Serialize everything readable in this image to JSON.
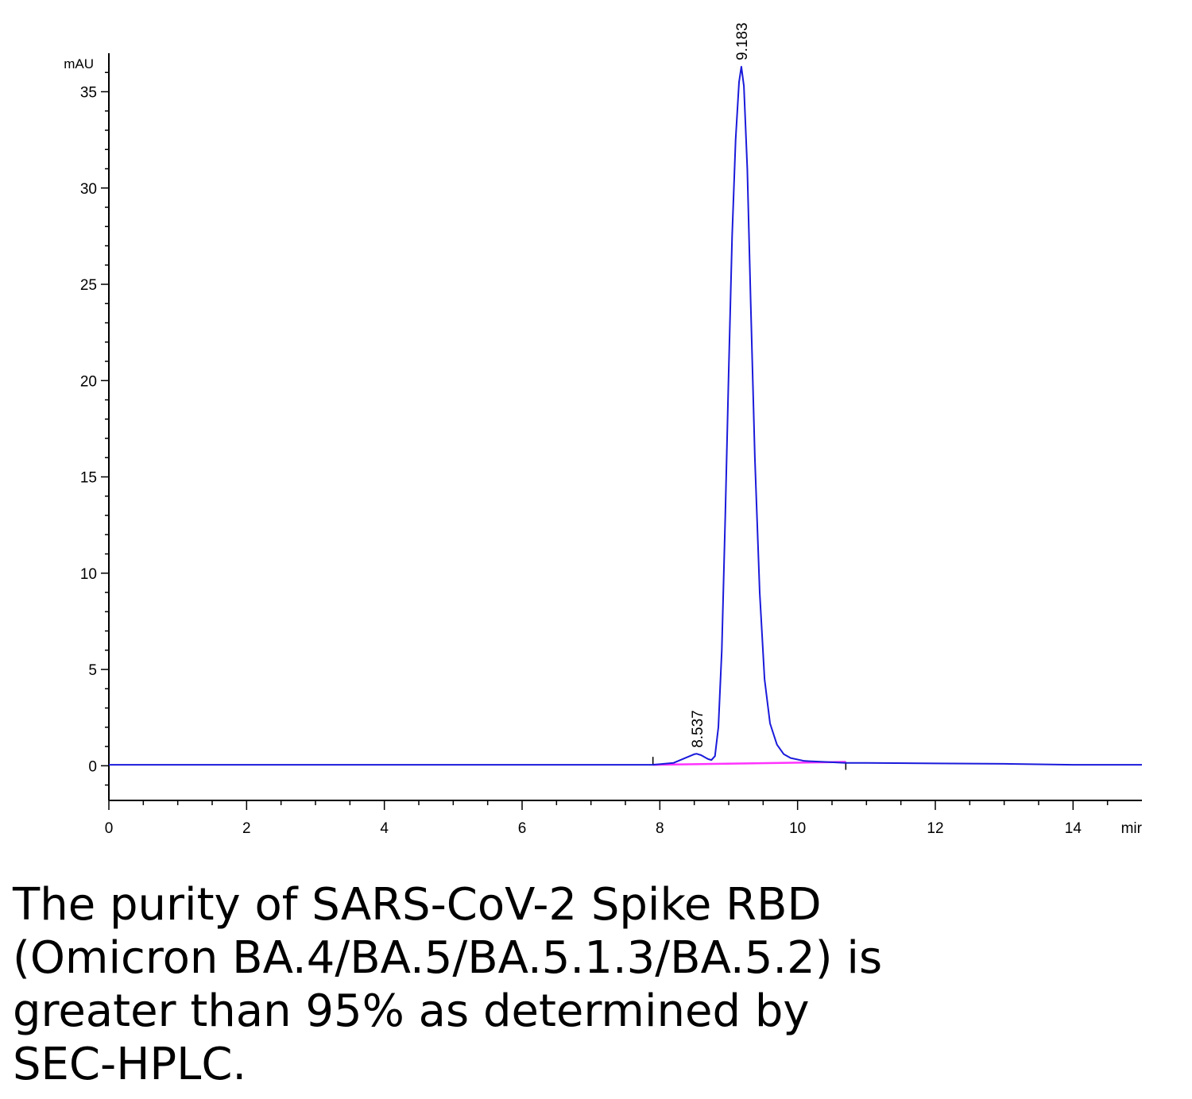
{
  "caption": "The purity of SARS-CoV-2 Spike RBD (Omicron BA.4/BA.5/BA.5.1.3/BA.5.2) is greater than 95% as determined by SEC-HPLC.",
  "chart_data": {
    "type": "line",
    "ylabel": "mAU",
    "xlabel": "mir",
    "xlim": [
      0,
      15
    ],
    "ylim": [
      -1.8,
      37
    ],
    "x_ticks": [
      0,
      2,
      4,
      6,
      8,
      10,
      12,
      14
    ],
    "y_ticks": [
      0,
      5,
      10,
      15,
      20,
      25,
      30,
      35
    ],
    "grid": false,
    "colors": {
      "signal": "#1a1adb",
      "baseline": "#ff33ff",
      "axis": "#000000"
    },
    "peak_labels": [
      {
        "text": "8.537",
        "x": 8.537,
        "y": 0.6
      },
      {
        "text": "9.183",
        "x": 9.183,
        "y": 36.3
      }
    ],
    "series": [
      {
        "x": [
          0,
          1,
          2,
          3,
          4,
          5,
          6,
          7,
          7.9,
          8.2,
          8.4,
          8.5,
          8.537,
          8.6,
          8.7,
          8.75,
          8.8,
          8.85,
          8.9,
          8.95,
          9.0,
          9.05,
          9.1,
          9.15,
          9.183,
          9.22,
          9.27,
          9.32,
          9.38,
          9.45,
          9.52,
          9.6,
          9.7,
          9.8,
          9.9,
          10.1,
          10.4,
          10.7,
          11,
          12,
          13,
          14,
          15
        ],
        "y": [
          0.05,
          0.05,
          0.05,
          0.05,
          0.05,
          0.05,
          0.05,
          0.05,
          0.05,
          0.15,
          0.45,
          0.6,
          0.62,
          0.55,
          0.35,
          0.3,
          0.5,
          2.0,
          6.0,
          13.0,
          20.5,
          27.5,
          32.5,
          35.5,
          36.3,
          35.3,
          31.0,
          24.0,
          16.0,
          9.0,
          4.5,
          2.2,
          1.1,
          0.6,
          0.4,
          0.25,
          0.2,
          0.15,
          0.15,
          0.12,
          0.1,
          0.05,
          0.05
        ]
      }
    ],
    "baseline": {
      "x": [
        7.9,
        10.7
      ],
      "y": [
        0.05,
        0.2
      ]
    }
  }
}
